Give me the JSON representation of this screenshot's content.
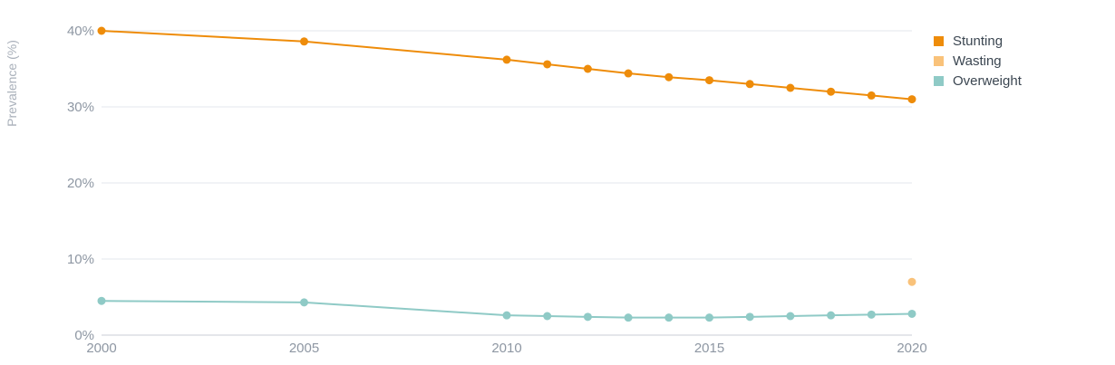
{
  "chart_data": {
    "type": "line",
    "ylabel": "Prevalence (%)",
    "xlabel": "",
    "title": "",
    "xlim": [
      2000,
      2020
    ],
    "ylim": [
      0,
      40
    ],
    "x_ticks": [
      "2000",
      "2005",
      "2010",
      "2015",
      "2020"
    ],
    "y_ticks": [
      "0%",
      "10%",
      "20%",
      "30%",
      "40%"
    ],
    "grid": true,
    "legend_position": "top-right",
    "series": [
      {
        "name": "Stunting",
        "color": "#ee8c0a",
        "x": [
          2000,
          2005,
          2010,
          2011,
          2012,
          2013,
          2014,
          2015,
          2016,
          2017,
          2018,
          2019,
          2020
        ],
        "values": [
          40.0,
          38.6,
          36.2,
          35.6,
          35.0,
          34.4,
          33.9,
          33.5,
          33.0,
          32.5,
          32.0,
          31.5,
          31.0
        ]
      },
      {
        "name": "Wasting",
        "color": "#f9c27a",
        "x": [
          2020
        ],
        "values": [
          7.0
        ]
      },
      {
        "name": "Overweight",
        "color": "#8fcac6",
        "x": [
          2000,
          2005,
          2010,
          2011,
          2012,
          2013,
          2014,
          2015,
          2016,
          2017,
          2018,
          2019,
          2020
        ],
        "values": [
          4.5,
          4.3,
          2.6,
          2.5,
          2.4,
          2.3,
          2.3,
          2.3,
          2.4,
          2.5,
          2.6,
          2.7,
          2.8
        ]
      }
    ]
  }
}
